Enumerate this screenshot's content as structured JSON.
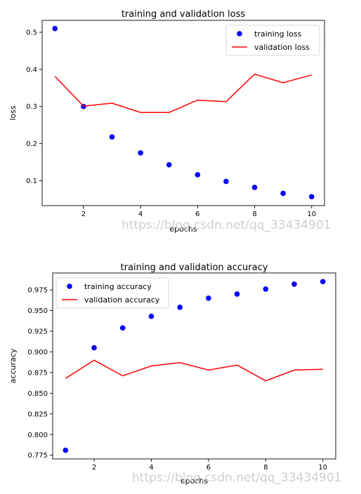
{
  "watermark": "https://blog.csdn.net/qq_33434901",
  "chart_data": [
    {
      "type": "scatter+line",
      "title": "training and validation loss",
      "xlabel": "epochs",
      "ylabel": "loss",
      "x": [
        1,
        2,
        3,
        4,
        5,
        6,
        7,
        8,
        9,
        10
      ],
      "xticks": [
        "2",
        "4",
        "6",
        "8",
        "10"
      ],
      "yticks": [
        "0.1",
        "0.2",
        "0.3",
        "0.4",
        "0.5"
      ],
      "xlim": [
        0.55,
        10.45
      ],
      "ylim": [
        0.033,
        0.532
      ],
      "grid": false,
      "legend_position": "top-right",
      "series": [
        {
          "name": "training loss",
          "style": "dots",
          "color": "#0000ff",
          "values": [
            0.51,
            0.3,
            0.218,
            0.175,
            0.143,
            0.116,
            0.098,
            0.082,
            0.066,
            0.057
          ]
        },
        {
          "name": "validation loss",
          "style": "line",
          "color": "#ff0000",
          "values": [
            0.381,
            0.301,
            0.309,
            0.284,
            0.284,
            0.317,
            0.313,
            0.387,
            0.364,
            0.385
          ]
        }
      ]
    },
    {
      "type": "scatter+line",
      "title": "training and validation accuracy",
      "xlabel": "epochs",
      "ylabel": "accuracy",
      "x": [
        1,
        2,
        3,
        4,
        5,
        6,
        7,
        8,
        9,
        10
      ],
      "xticks": [
        "2",
        "4",
        "6",
        "8",
        "10"
      ],
      "yticks": [
        "0.775",
        "0.800",
        "0.825",
        "0.850",
        "0.875",
        "0.900",
        "0.925",
        "0.950",
        "0.975"
      ],
      "xlim": [
        0.55,
        10.45
      ],
      "ylim": [
        0.7705,
        0.9955
      ],
      "grid": false,
      "legend_position": "top-left",
      "series": [
        {
          "name": "training accuracy",
          "style": "dots",
          "color": "#0000ff",
          "values": [
            0.781,
            0.905,
            0.929,
            0.943,
            0.954,
            0.965,
            0.97,
            0.976,
            0.982,
            0.985
          ]
        },
        {
          "name": "validation accuracy",
          "style": "line",
          "color": "#ff0000",
          "values": [
            0.868,
            0.89,
            0.871,
            0.883,
            0.887,
            0.878,
            0.884,
            0.865,
            0.878,
            0.879
          ]
        }
      ]
    }
  ]
}
